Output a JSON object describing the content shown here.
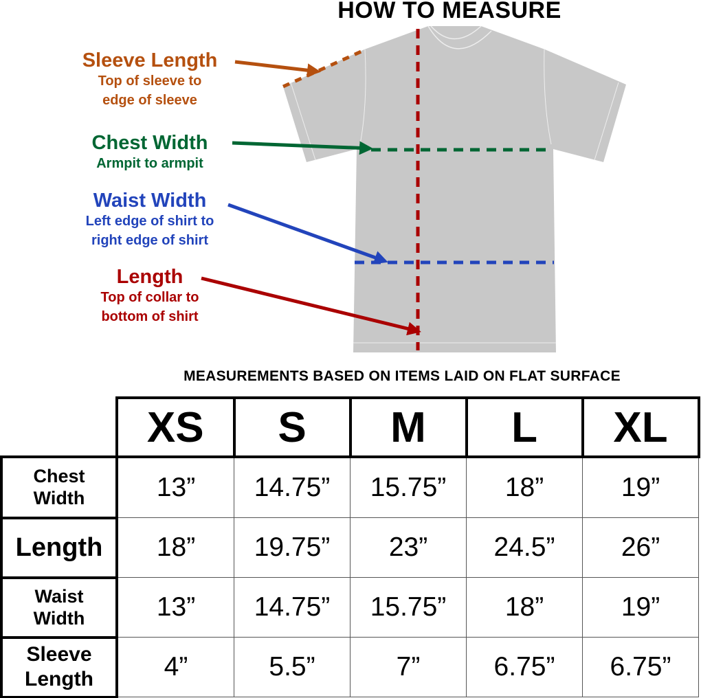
{
  "title": "HOW TO MEASURE",
  "colors": {
    "sleeve": "#b5500f",
    "chest": "#006633",
    "waist": "#2244bb",
    "length": "#aa0000",
    "shirt": "#c8c8c8"
  },
  "labels": {
    "sleeve": {
      "heading": "Sleeve Length",
      "line1": "Top of sleeve to",
      "line2": "edge of sleeve"
    },
    "chest": {
      "heading": "Chest Width",
      "line1": "Armpit to armpit"
    },
    "waist": {
      "heading": "Waist Width",
      "line1": "Left edge of shirt to",
      "line2": "right edge of shirt"
    },
    "length": {
      "heading": "Length",
      "line1": "Top of collar to",
      "line2": "bottom of shirt"
    }
  },
  "subtitle": "MEASUREMENTS BASED ON ITEMS LAID ON FLAT SURFACE",
  "table": {
    "sizes": [
      "XS",
      "S",
      "M",
      "L",
      "XL"
    ],
    "rows": [
      {
        "label1": "Chest",
        "label2": "Width",
        "values": [
          "13”",
          "14.75”",
          "15.75”",
          "18”",
          "19”"
        ]
      },
      {
        "label1": "Length",
        "label2": "",
        "values": [
          "18”",
          "19.75”",
          "23”",
          "24.5”",
          "26”"
        ]
      },
      {
        "label1": "Waist",
        "label2": "Width",
        "values": [
          "13”",
          "14.75”",
          "15.75”",
          "18”",
          "19”"
        ]
      },
      {
        "label1": "Sleeve",
        "label2": "Length",
        "values": [
          "4”",
          "5.5”",
          "7”",
          "6.75”",
          "6.75”"
        ]
      }
    ]
  }
}
